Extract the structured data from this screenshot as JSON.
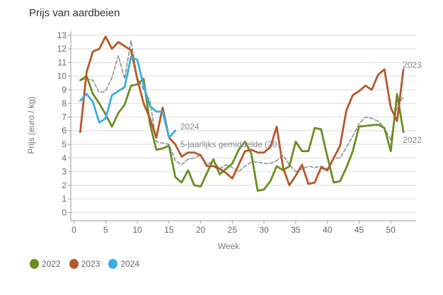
{
  "chart_data": {
    "type": "line",
    "title": "Prijs van aardbeien",
    "xlabel": "Week",
    "ylabel": "Prijs (euro / kg)",
    "xlim": [
      -0.5,
      54
    ],
    "ylim": [
      -0.6,
      13.3
    ],
    "xticks": [
      0,
      5,
      10,
      15,
      20,
      25,
      30,
      35,
      40,
      45,
      50
    ],
    "yticks": [
      0,
      1,
      2,
      3,
      4,
      5,
      6,
      7,
      8,
      9,
      10,
      11,
      12,
      13
    ],
    "grid": "horizontal",
    "legend_position": "bottom-left",
    "series": [
      {
        "name": "2022",
        "color": "#6b8e23",
        "dashed": false,
        "end_label": "2022",
        "x": [
          1,
          2,
          3,
          4,
          5,
          6,
          7,
          8,
          9,
          10,
          11,
          12,
          13,
          14,
          15,
          16,
          17,
          18,
          19,
          20,
          21,
          22,
          23,
          24,
          25,
          26,
          27,
          28,
          29,
          30,
          31,
          32,
          33,
          34,
          35,
          36,
          37,
          38,
          39,
          40,
          41,
          42,
          43,
          44,
          45,
          46,
          47,
          48,
          49,
          50,
          51,
          52
        ],
        "values": [
          9.7,
          10.0,
          8.7,
          8.0,
          7.2,
          6.3,
          7.3,
          7.9,
          9.3,
          9.4,
          9.8,
          6.5,
          4.6,
          4.7,
          4.9,
          2.6,
          2.2,
          3.1,
          2.0,
          1.9,
          2.9,
          3.9,
          2.8,
          3.2,
          3.6,
          4.6,
          5.2,
          4.3,
          1.6,
          1.7,
          2.3,
          3.4,
          3.1,
          3.4,
          5.2,
          4.5,
          4.5,
          6.2,
          6.1,
          4.1,
          2.2,
          2.3,
          3.3,
          4.5,
          6.3,
          6.35,
          6.4,
          6.45,
          6.2,
          4.5,
          8.7,
          5.9
        ]
      },
      {
        "name": "2023",
        "color": "#b5592a",
        "dashed": false,
        "end_label": "2023",
        "x": [
          1,
          2,
          3,
          4,
          5,
          6,
          7,
          8,
          9,
          10,
          11,
          12,
          13,
          14,
          15,
          16,
          17,
          18,
          19,
          20,
          21,
          22,
          23,
          24,
          25,
          26,
          27,
          28,
          29,
          30,
          31,
          32,
          33,
          34,
          35,
          36,
          37,
          38,
          39,
          40,
          41,
          42,
          43,
          44,
          45,
          46,
          47,
          48,
          49,
          50,
          51,
          52
        ],
        "values": [
          5.9,
          10.3,
          11.8,
          12.0,
          12.9,
          12.0,
          12.5,
          12.2,
          11.9,
          9.8,
          8.0,
          6.9,
          5.5,
          7.7,
          5.5,
          5.0,
          4.1,
          4.4,
          4.4,
          4.2,
          3.4,
          3.4,
          3.2,
          2.9,
          2.5,
          3.5,
          4.5,
          4.6,
          4.4,
          4.4,
          4.8,
          6.3,
          3.3,
          2.0,
          2.7,
          3.5,
          2.1,
          2.2,
          3.3,
          3.1,
          4.0,
          4.9,
          7.5,
          8.6,
          8.9,
          9.3,
          9.0,
          10.1,
          10.5,
          7.7,
          6.7,
          10.5
        ]
      },
      {
        "name": "2024",
        "color": "#3aaee0",
        "dashed": false,
        "end_label": "2024",
        "x": [
          1,
          2,
          3,
          4,
          5,
          6,
          7,
          8,
          9,
          10,
          11,
          12,
          13,
          14,
          15,
          16
        ],
        "values": [
          8.2,
          8.7,
          8.1,
          6.6,
          6.9,
          8.6,
          8.9,
          9.2,
          11.4,
          11.2,
          9.3,
          7.8,
          7.4,
          7.4,
          5.5,
          6.0
        ]
      },
      {
        "name": "5-jaarlijks gemiddelde (20...",
        "color": "#888888",
        "dashed": true,
        "end_label": "5-jaarlijks gemiddelde (20...",
        "x": [
          1,
          2,
          3,
          4,
          5,
          6,
          7,
          8,
          9,
          10,
          11,
          12,
          13,
          14,
          15,
          16,
          17,
          18,
          19,
          20,
          21,
          22,
          23,
          24,
          25,
          26,
          27,
          28,
          29,
          30,
          31,
          32,
          33,
          34,
          35,
          36,
          37,
          38,
          39,
          40,
          41,
          42,
          43,
          44,
          45,
          46,
          47,
          48,
          49,
          50,
          51,
          52
        ],
        "values": [
          9.7,
          9.8,
          9.7,
          8.8,
          8.9,
          9.9,
          11.5,
          9.8,
          12.6,
          9.9,
          9.0,
          8.2,
          5.2,
          5.1,
          5.0,
          3.8,
          3.5,
          3.9,
          4.0,
          4.2,
          3.5,
          3.8,
          3.2,
          3.5,
          3.3,
          3.0,
          3.4,
          3.7,
          3.7,
          3.6,
          3.6,
          3.8,
          4.2,
          3.5,
          3.0,
          3.2,
          3.4,
          3.3,
          3.4,
          3.2,
          4.0,
          4.0,
          4.8,
          5.6,
          6.5,
          7.0,
          6.9,
          6.7,
          6.2,
          5.3,
          7.8,
          8.5
        ]
      }
    ]
  },
  "legend": [
    {
      "label": "2022",
      "color": "#6b8e23"
    },
    {
      "label": "2023",
      "color": "#b5592a"
    },
    {
      "label": "2024",
      "color": "#3aaee0"
    }
  ]
}
